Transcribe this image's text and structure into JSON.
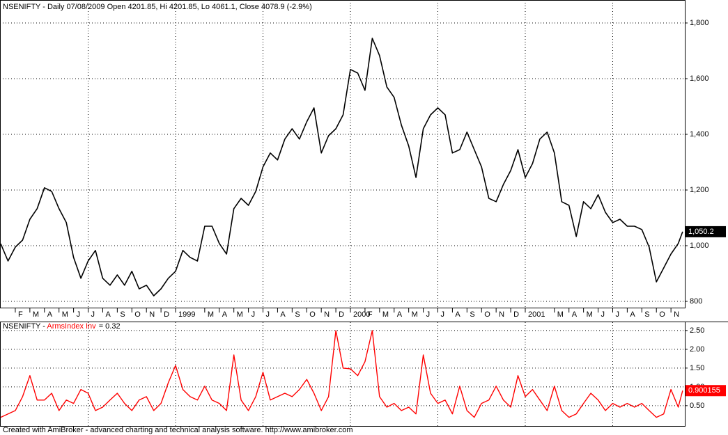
{
  "chart_data": [
    {
      "type": "line",
      "title": "NSENIFTY - Daily 07/08/2009 Open 4201.85, Hi 4201.85, Lo 4061.1, Close 4078.9 (-2.9%)",
      "x": [
        0,
        0.5,
        1,
        1.5,
        2,
        2.5,
        3,
        3.5,
        4,
        4.5,
        5,
        5.5,
        6,
        6.5,
        7,
        7.5,
        8,
        8.5,
        9,
        9.5,
        10,
        10.5,
        11,
        11.5,
        12,
        12.5,
        13,
        13.5,
        14,
        14.5,
        15,
        15.5,
        16,
        16.5,
        17,
        17.5,
        18,
        18.5,
        19,
        19.5,
        20,
        20.5,
        21,
        21.5,
        22,
        22.5,
        23,
        23.5,
        24,
        24.5,
        25,
        25.5,
        26,
        26.5,
        27,
        27.5,
        28,
        28.5,
        29,
        29.5,
        30,
        30.5,
        31,
        31.5,
        32,
        32.5,
        33,
        33.5,
        34,
        34.5,
        35,
        35.5,
        36,
        36.5,
        37,
        37.5,
        38,
        38.5,
        39,
        39.5,
        40,
        40.5,
        41,
        41.5,
        42,
        42.5,
        43,
        43.5,
        44,
        44.5,
        45,
        45.5,
        46,
        46.5,
        46.8
      ],
      "series": [
        {
          "color": "#000000",
          "values": [
            1007,
            945,
            995,
            1020,
            1095,
            1133,
            1208,
            1195,
            1133,
            1083,
            958,
            883,
            945,
            983,
            883,
            858,
            895,
            858,
            908,
            845,
            858,
            820,
            845,
            883,
            908,
            983,
            958,
            945,
            1070,
            1070,
            1008,
            970,
            1133,
            1170,
            1145,
            1195,
            1283,
            1333,
            1308,
            1383,
            1420,
            1383,
            1445,
            1495,
            1333,
            1395,
            1420,
            1470,
            1633,
            1620,
            1558,
            1745,
            1683,
            1570,
            1533,
            1433,
            1358,
            1245,
            1420,
            1470,
            1495,
            1470,
            1333,
            1345,
            1408,
            1345,
            1283,
            1170,
            1158,
            1220,
            1270,
            1345,
            1245,
            1295,
            1383,
            1408,
            1333,
            1158,
            1145,
            1033,
            1158,
            1133,
            1183,
            1120,
            1083,
            1095,
            1070,
            1070,
            1058,
            995,
            870,
            920,
            970,
            1008,
            1050.2
          ]
        }
      ],
      "xlim": [
        -0.05,
        46.95
      ],
      "xticks": [
        {
          "value": 1,
          "label": "F"
        },
        {
          "value": 2,
          "label": "M"
        },
        {
          "value": 3,
          "label": "A"
        },
        {
          "value": 4,
          "label": "M"
        },
        {
          "value": 5,
          "label": "J"
        },
        {
          "value": 6,
          "label": "J"
        },
        {
          "value": 7,
          "label": "A"
        },
        {
          "value": 8,
          "label": "S"
        },
        {
          "value": 9,
          "label": "O"
        },
        {
          "value": 10,
          "label": "N"
        },
        {
          "value": 11,
          "label": "D"
        },
        {
          "value": 12,
          "label": "1999"
        },
        {
          "value": 14,
          "label": "M"
        },
        {
          "value": 15,
          "label": "A"
        },
        {
          "value": 16,
          "label": "M"
        },
        {
          "value": 17,
          "label": "J"
        },
        {
          "value": 18,
          "label": "J"
        },
        {
          "value": 19,
          "label": "A"
        },
        {
          "value": 20,
          "label": "S"
        },
        {
          "value": 21,
          "label": "O"
        },
        {
          "value": 22,
          "label": "N"
        },
        {
          "value": 23,
          "label": "D"
        },
        {
          "value": 24,
          "label": "2000"
        },
        {
          "value": 25,
          "label": "F"
        },
        {
          "value": 26,
          "label": "M"
        },
        {
          "value": 27,
          "label": "A"
        },
        {
          "value": 28,
          "label": "M"
        },
        {
          "value": 29,
          "label": "J"
        },
        {
          "value": 30,
          "label": "J"
        },
        {
          "value": 31,
          "label": "A"
        },
        {
          "value": 32,
          "label": "S"
        },
        {
          "value": 33,
          "label": "O"
        },
        {
          "value": 34,
          "label": "N"
        },
        {
          "value": 35,
          "label": "D"
        },
        {
          "value": 36,
          "label": "2001"
        },
        {
          "value": 38,
          "label": "M"
        },
        {
          "value": 39,
          "label": "A"
        },
        {
          "value": 40,
          "label": "M"
        },
        {
          "value": 41,
          "label": "J"
        },
        {
          "value": 42,
          "label": "J"
        },
        {
          "value": 43,
          "label": "A"
        },
        {
          "value": 44,
          "label": "S"
        },
        {
          "value": 45,
          "label": "O"
        },
        {
          "value": 46,
          "label": "N"
        }
      ],
      "xgrid": [
        6,
        12,
        18,
        24,
        30,
        36,
        42
      ],
      "ylim": [
        775,
        1882.5
      ],
      "yticks": [
        800,
        {
          "value": 1000,
          "label": "1,000"
        },
        {
          "value": 1200,
          "label": "1,200"
        },
        {
          "value": 1400,
          "label": "1,400"
        },
        {
          "value": 1600,
          "label": "1,600"
        },
        {
          "value": 1800,
          "label": "1,800"
        }
      ],
      "grid": true,
      "last_value": 1050.2,
      "last_value_label": "1,050.2",
      "last_value_color": "#000000"
    },
    {
      "type": "line",
      "title": "NSENIFTY - ",
      "title_value": "= 0.32",
      "x": [
        0,
        0.5,
        1,
        1.5,
        2,
        2.5,
        3,
        3.5,
        4,
        4.5,
        5,
        5.5,
        6,
        6.5,
        7,
        7.5,
        8,
        8.5,
        9,
        9.5,
        10,
        10.5,
        11,
        11.5,
        12,
        12.5,
        13,
        13.5,
        14,
        14.5,
        15,
        15.5,
        16,
        16.5,
        17,
        17.5,
        18,
        18.5,
        19,
        19.5,
        20,
        20.5,
        21,
        21.5,
        22,
        22.5,
        23,
        23.5,
        24,
        24.5,
        25,
        25.5,
        26,
        26.5,
        27,
        27.5,
        28,
        28.5,
        29,
        29.5,
        30,
        30.5,
        31,
        31.5,
        32,
        32.5,
        33,
        33.5,
        34,
        34.5,
        35,
        35.5,
        36,
        36.5,
        37,
        37.5,
        38,
        38.5,
        39,
        39.5,
        40,
        40.5,
        41,
        41.5,
        42,
        42.5,
        43,
        43.5,
        44,
        44.5,
        45,
        45.5,
        46,
        46.5,
        46.8
      ],
      "series": [
        {
          "name": "ArmsIndex Inv",
          "color": "#ff0000",
          "values": [
            0.19,
            0.28,
            0.37,
            0.74,
            1.3,
            0.65,
            0.65,
            0.83,
            0.37,
            0.65,
            0.56,
            0.93,
            0.83,
            0.37,
            0.46,
            0.65,
            0.83,
            0.56,
            0.37,
            0.65,
            0.74,
            0.37,
            0.56,
            1.11,
            1.57,
            0.93,
            0.74,
            0.65,
            1.02,
            0.65,
            0.56,
            0.37,
            1.85,
            0.65,
            0.37,
            0.74,
            1.39,
            0.65,
            0.74,
            0.83,
            0.74,
            0.93,
            1.2,
            0.83,
            0.37,
            0.74,
            2.5,
            1.5,
            1.48,
            1.3,
            1.67,
            2.5,
            0.74,
            0.46,
            0.56,
            0.37,
            0.46,
            0.28,
            1.85,
            0.83,
            0.56,
            0.65,
            0.28,
            1.02,
            0.37,
            0.19,
            0.56,
            0.65,
            1.02,
            0.65,
            0.46,
            1.3,
            0.74,
            0.93,
            0.65,
            0.37,
            1.02,
            0.37,
            0.19,
            0.28,
            0.56,
            0.83,
            0.65,
            0.37,
            0.56,
            0.46,
            0.56,
            0.46,
            0.56,
            0.37,
            0.19,
            0.28,
            0.93,
            0.46,
            0.900155
          ]
        }
      ],
      "xlim": [
        -0.05,
        46.95
      ],
      "xgrid": [
        6,
        12,
        18,
        24,
        30,
        36,
        42
      ],
      "ylim": [
        -0.04,
        2.72
      ],
      "yticks": [
        {
          "value": 0.5,
          "label": "0.50"
        },
        {
          "value": 1,
          "label": "1.00"
        },
        {
          "value": 1.5,
          "label": "1.50"
        },
        {
          "value": 2,
          "label": "2.00"
        },
        {
          "value": 2.5,
          "label": "2.50"
        }
      ],
      "grid": true,
      "last_value": 0.900155,
      "last_value_color": "#ff0000"
    }
  ],
  "footer": "Created with AmiBroker - advanced charting and technical analysis software. http://www.amibroker.com"
}
